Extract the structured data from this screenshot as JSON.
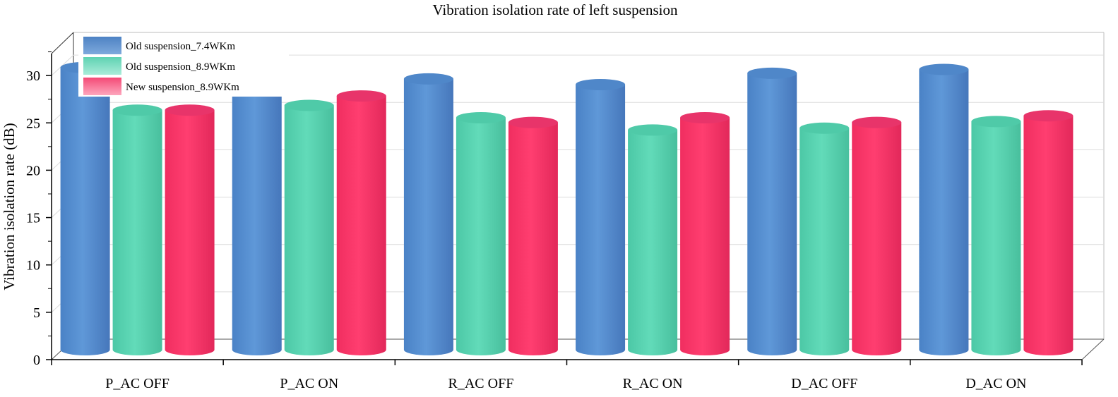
{
  "chart_data": {
    "type": "bar",
    "title": "Vibration isolation rate of left suspension",
    "xlabel": "",
    "ylabel": "Vibration isolation rate (dB)",
    "ylim": [
      0,
      30
    ],
    "y_ticks": [
      0,
      5,
      10,
      15,
      20,
      25,
      30
    ],
    "grid": true,
    "legend_position": "top-left",
    "categories": [
      "P_AC OFF",
      "P_AC ON",
      "R_AC OFF",
      "R_AC ON",
      "D_AC OFF",
      "D_AC ON"
    ],
    "series": [
      {
        "name": "Old suspension_7.4WKm",
        "color": "#5B93D3",
        "values": [
          29.8,
          30.0,
          28.6,
          28.0,
          29.2,
          29.6
        ]
      },
      {
        "name": "Old suspension_8.9WKm",
        "color": "#5DD6B4",
        "values": [
          25.3,
          25.8,
          24.5,
          23.2,
          23.4,
          24.1
        ]
      },
      {
        "name": "New suspension_8.9WKm",
        "color": "#FD3A6C",
        "values": [
          25.3,
          26.8,
          24.0,
          24.5,
          24.0,
          24.7
        ]
      }
    ]
  }
}
